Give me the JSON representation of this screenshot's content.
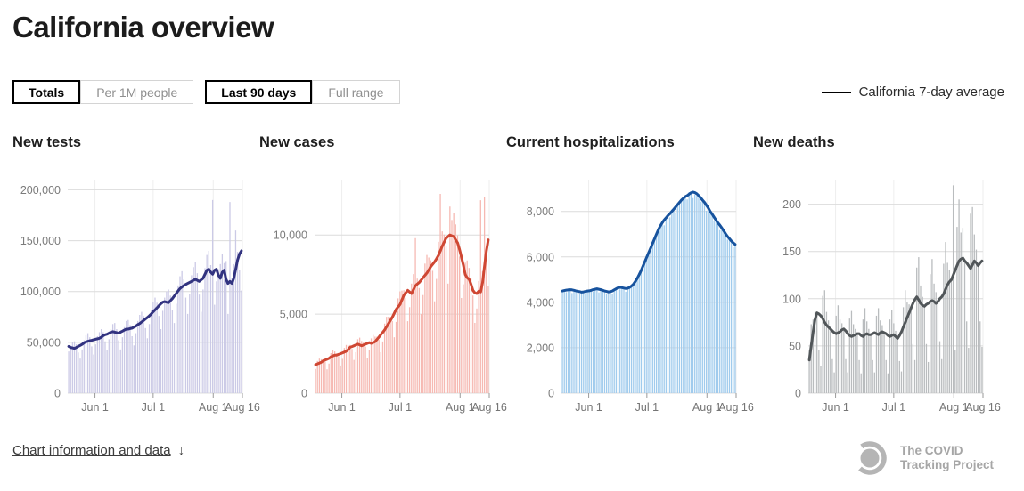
{
  "page": {
    "title": "California overview"
  },
  "controls": {
    "metric_toggle": [
      {
        "label": "Totals",
        "selected": true
      },
      {
        "label": "Per 1M people",
        "selected": false
      }
    ],
    "range_toggle": [
      {
        "label": "Last 90 days",
        "selected": true
      },
      {
        "label": "Full range",
        "selected": false
      }
    ]
  },
  "legend": {
    "label": "California 7-day average",
    "line_color": "#000000"
  },
  "footer": {
    "link_label": "Chart information and data",
    "arrow": "↓",
    "logo_line1": "The COVID",
    "logo_line2": "Tracking Project"
  },
  "chart_data": [
    {
      "type": "bar",
      "title": "New tests",
      "bar_color": "#cbcae6",
      "line_color": "#323380",
      "ylim": [
        0,
        210000
      ],
      "grid": true,
      "legend_position": "top-right-page",
      "y_ticks": [
        {
          "value": 0,
          "label": "0"
        },
        {
          "value": 50000,
          "label": "50,000"
        },
        {
          "value": 100000,
          "label": "100,000"
        },
        {
          "value": 150000,
          "label": "150,000"
        },
        {
          "value": 200000,
          "label": "200,000"
        }
      ],
      "x_ticks": [
        {
          "pos": 0.156,
          "label": "Jun 1"
        },
        {
          "pos": 0.489,
          "label": "Jul 1"
        },
        {
          "pos": 0.833,
          "label": "Aug 1"
        },
        {
          "pos": 1.0,
          "label": "Aug 16"
        }
      ],
      "series": [
        {
          "name": "New tests daily",
          "type": "bar",
          "values": [
            41000,
            47000,
            50000,
            51000,
            48000,
            40000,
            34000,
            43000,
            52000,
            57000,
            59000,
            55000,
            46000,
            38000,
            48000,
            56000,
            60000,
            63000,
            60000,
            51000,
            42000,
            53000,
            63000,
            68000,
            69000,
            63000,
            52000,
            43000,
            55000,
            65000,
            71000,
            72000,
            67000,
            56000,
            47000,
            59000,
            71000,
            77000,
            80000,
            76000,
            64000,
            54000,
            68000,
            82000,
            90000,
            94000,
            89000,
            76000,
            63000,
            81000,
            94000,
            100000,
            102000,
            96000,
            82000,
            69000,
            88000,
            106000,
            115000,
            120000,
            112000,
            94000,
            78000,
            98000,
            116000,
            124000,
            129000,
            118000,
            97000,
            80000,
            102000,
            123000,
            136000,
            140000,
            126000,
            190000,
            87000,
            110000,
            122000,
            127000,
            137000,
            128000,
            130000,
            78000,
            188000,
            113000,
            127000,
            160000,
            139000,
            121000,
            101000
          ]
        },
        {
          "name": "California 7-day average",
          "type": "line",
          "values": [
            46000,
            45000,
            44500,
            44000,
            45000,
            46000,
            47000,
            48000,
            49500,
            50500,
            51000,
            51500,
            52000,
            52500,
            53000,
            53500,
            54000,
            55000,
            56500,
            57500,
            58000,
            59000,
            60000,
            60500,
            60000,
            59500,
            59000,
            60000,
            61000,
            62000,
            63000,
            63000,
            63500,
            64000,
            65000,
            66000,
            67500,
            68500,
            70000,
            71500,
            73000,
            74500,
            76000,
            78000,
            80000,
            82000,
            84000,
            86000,
            88000,
            89500,
            90000,
            89500,
            89000,
            91000,
            93000,
            95500,
            98000,
            100500,
            103000,
            104500,
            106000,
            107000,
            108000,
            109000,
            110000,
            111000,
            112000,
            111000,
            110000,
            111500,
            113000,
            117000,
            121000,
            122000,
            119000,
            117000,
            121000,
            122000,
            116000,
            113000,
            119000,
            121000,
            112000,
            108000,
            110000,
            108000,
            113000,
            122000,
            131000,
            137000,
            140000
          ]
        }
      ]
    },
    {
      "type": "bar",
      "title": "New cases",
      "bar_color": "#f6b9b2",
      "line_color": "#cf4733",
      "ylim": [
        0,
        13500
      ],
      "grid": true,
      "y_ticks": [
        {
          "value": 0,
          "label": "0"
        },
        {
          "value": 5000,
          "label": "5,000"
        },
        {
          "value": 10000,
          "label": "10,000"
        }
      ],
      "x_ticks": [
        {
          "pos": 0.156,
          "label": "Jun 1"
        },
        {
          "pos": 0.489,
          "label": "Jul 1"
        },
        {
          "pos": 0.833,
          "label": "Aug 1"
        },
        {
          "pos": 1.0,
          "label": "Aug 16"
        }
      ],
      "series": [
        {
          "name": "New cases daily",
          "type": "bar",
          "values": [
            1530,
            2035,
            2185,
            2145,
            2150,
            1995,
            1505,
            1870,
            2530,
            2700,
            2640,
            2520,
            2330,
            1750,
            2170,
            2860,
            3050,
            3025,
            3045,
            2800,
            2100,
            2590,
            3410,
            3510,
            3300,
            3200,
            2945,
            2205,
            2720,
            3465,
            3680,
            3575,
            3570,
            3370,
            2590,
            3270,
            4400,
            4830,
            4840,
            4830,
            4560,
            3535,
            4505,
            5995,
            6440,
            6490,
            6510,
            6030,
            4550,
            5440,
            6930,
            7530,
            9800,
            7245,
            6650,
            5005,
            6205,
            8195,
            8740,
            8580,
            8400,
            7740,
            5810,
            7225,
            9570,
            12600,
            10230,
            10030,
            9310,
            6930,
            11800,
            10950,
            11390,
            10670,
            9975,
            8645,
            6020,
            6885,
            8250,
            8395,
            7920,
            7245,
            6175,
            4445,
            5355,
            7095,
            12200,
            7700,
            12400,
            8550,
            6790
          ]
        },
        {
          "name": "California 7-day average",
          "type": "line",
          "values": [
            1800,
            1850,
            1900,
            1950,
            2050,
            2100,
            2150,
            2200,
            2300,
            2350,
            2400,
            2400,
            2450,
            2500,
            2550,
            2600,
            2650,
            2750,
            2900,
            2950,
            3000,
            3050,
            3100,
            3050,
            3000,
            3050,
            3100,
            3150,
            3200,
            3150,
            3200,
            3250,
            3400,
            3550,
            3700,
            3850,
            4000,
            4200,
            4400,
            4600,
            4800,
            5050,
            5300,
            5450,
            5600,
            5900,
            6200,
            6350,
            6500,
            6400,
            6300,
            6550,
            6800,
            6900,
            7000,
            7150,
            7300,
            7450,
            7600,
            7800,
            8000,
            8150,
            8300,
            8500,
            8700,
            9000,
            9300,
            9550,
            9800,
            9900,
            10000,
            9950,
            9900,
            9700,
            9500,
            9100,
            8600,
            8100,
            7500,
            7300,
            7200,
            6900,
            6500,
            6350,
            6300,
            6450,
            6400,
            7000,
            8000,
            9000,
            9700
          ]
        }
      ]
    },
    {
      "type": "bar",
      "title": "Current hospitalizations",
      "bar_color": "#a0cbed",
      "line_color": "#17539e",
      "ylim": [
        0,
        9400
      ],
      "grid": true,
      "y_ticks": [
        {
          "value": 0,
          "label": "0"
        },
        {
          "value": 2000,
          "label": "2,000"
        },
        {
          "value": 4000,
          "label": "4,000"
        },
        {
          "value": 6000,
          "label": "6,000"
        },
        {
          "value": 8000,
          "label": "8,000"
        }
      ],
      "x_ticks": [
        {
          "pos": 0.156,
          "label": "Jun 1"
        },
        {
          "pos": 0.489,
          "label": "Jul 1"
        },
        {
          "pos": 0.833,
          "label": "Aug 1"
        },
        {
          "pos": 1.0,
          "label": "Aug 16"
        }
      ],
      "series": [
        {
          "name": "Currently hospitalized",
          "type": "bar",
          "values": [
            4460,
            4520,
            4450,
            4600,
            4560,
            4410,
            4480,
            4460,
            4490,
            4380,
            4490,
            4460,
            4390,
            4460,
            4460,
            4530,
            4470,
            4630,
            4600,
            4440,
            4510,
            4480,
            4500,
            4390,
            4500,
            4470,
            4370,
            4500,
            4550,
            4640,
            4570,
            4700,
            4630,
            4470,
            4570,
            4610,
            4720,
            4700,
            4970,
            5060,
            5060,
            5350,
            5540,
            5740,
            6060,
            6200,
            6210,
            6530,
            6800,
            6860,
            7130,
            7430,
            7500,
            7390,
            7640,
            7820,
            7740,
            8080,
            8100,
            7950,
            8220,
            8320,
            8500,
            8490,
            8650,
            8530,
            8850,
            8820,
            8590,
            8740,
            8690,
            8700,
            8430,
            8590,
            8400,
            8030,
            8070,
            7920,
            7880,
            7600,
            7700,
            7500,
            7180,
            7210,
            7080,
            7020,
            6760,
            6870,
            6700,
            6420,
            6480
          ]
        },
        {
          "name": "California 7-day average",
          "type": "line",
          "values": [
            4500,
            4520,
            4540,
            4550,
            4560,
            4550,
            4530,
            4510,
            4490,
            4470,
            4450,
            4460,
            4480,
            4500,
            4510,
            4530,
            4560,
            4580,
            4600,
            4580,
            4560,
            4530,
            4500,
            4480,
            4460,
            4470,
            4500,
            4550,
            4600,
            4640,
            4660,
            4650,
            4630,
            4610,
            4620,
            4660,
            4720,
            4800,
            4920,
            5060,
            5220,
            5400,
            5600,
            5800,
            6000,
            6200,
            6400,
            6600,
            6800,
            7000,
            7200,
            7360,
            7500,
            7620,
            7720,
            7820,
            7900,
            8000,
            8100,
            8200,
            8300,
            8400,
            8500,
            8580,
            8650,
            8700,
            8760,
            8820,
            8850,
            8830,
            8780,
            8700,
            8600,
            8500,
            8400,
            8280,
            8150,
            8000,
            7880,
            7750,
            7620,
            7500,
            7400,
            7280,
            7150,
            7020,
            6900,
            6800,
            6700,
            6620,
            6550
          ]
        }
      ]
    },
    {
      "type": "bar",
      "title": "New deaths",
      "bar_color": "#b9bcbe",
      "line_color": "#515659",
      "ylim": [
        0,
        226
      ],
      "grid": true,
      "y_ticks": [
        {
          "value": 0,
          "label": "0"
        },
        {
          "value": 50,
          "label": "50"
        },
        {
          "value": 100,
          "label": "100"
        },
        {
          "value": 150,
          "label": "150"
        },
        {
          "value": 200,
          "label": "200"
        }
      ],
      "x_ticks": [
        {
          "pos": 0.156,
          "label": "Jun 1"
        },
        {
          "pos": 0.489,
          "label": "Jul 1"
        },
        {
          "pos": 0.833,
          "label": "Aug 1"
        },
        {
          "pos": 1.0,
          "label": "Aug 16"
        }
      ],
      "series": [
        {
          "name": "New deaths daily",
          "type": "bar",
          "values": [
            46,
            73,
            78,
            86,
            85,
            46,
            29,
            103,
            109,
            86,
            77,
            68,
            36,
            22,
            82,
            93,
            78,
            74,
            68,
            36,
            22,
            79,
            87,
            73,
            68,
            63,
            35,
            21,
            78,
            90,
            76,
            68,
            62,
            35,
            22,
            82,
            90,
            77,
            72,
            64,
            35,
            21,
            78,
            88,
            74,
            66,
            58,
            34,
            23,
            91,
            109,
            96,
            94,
            90,
            52,
            35,
            133,
            144,
            114,
            102,
            92,
            52,
            33,
            126,
            142,
            116,
            107,
            98,
            55,
            36,
            137,
            160,
            138,
            130,
            120,
            220,
            46,
            176,
            205,
            170,
            175,
            140,
            76,
            48,
            190,
            197,
            168,
            152,
            135,
            76,
            49
          ]
        },
        {
          "name": "California 7-day average",
          "type": "line",
          "values": [
            35,
            50,
            65,
            78,
            85,
            84,
            82,
            79,
            75,
            72,
            70,
            68,
            66,
            64,
            63,
            64,
            65,
            67,
            68,
            66,
            63,
            61,
            60,
            61,
            62,
            63,
            63,
            61,
            60,
            62,
            63,
            62,
            62,
            63,
            64,
            63,
            62,
            64,
            65,
            64,
            63,
            61,
            60,
            61,
            62,
            60,
            58,
            61,
            65,
            70,
            75,
            80,
            85,
            90,
            95,
            99,
            102,
            99,
            95,
            93,
            92,
            94,
            95,
            97,
            98,
            97,
            95,
            97,
            100,
            102,
            105,
            110,
            115,
            118,
            120,
            125,
            130,
            135,
            140,
            142,
            143,
            140,
            138,
            135,
            132,
            136,
            140,
            138,
            135,
            138,
            140
          ]
        }
      ]
    }
  ]
}
